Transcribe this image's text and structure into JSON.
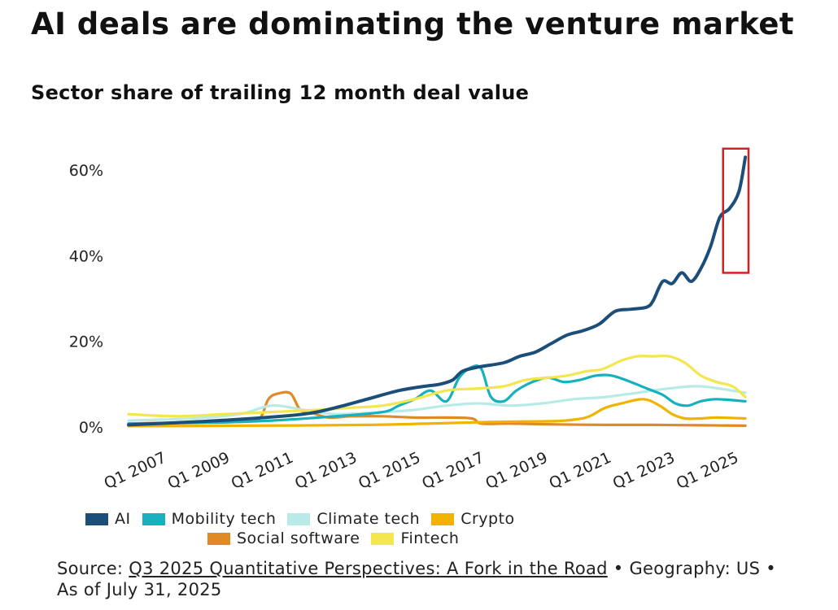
{
  "chart_data": {
    "type": "line",
    "title": "AI deals are dominating the venture market",
    "subtitle": "Sector share of trailing 12 month deal value",
    "x_ticks": [
      "Q1 2007",
      "Q1 2009",
      "Q1 2011",
      "Q1 2013",
      "Q1 2015",
      "Q1 2017",
      "Q1 2019",
      "Q1 2021",
      "Q1 2023",
      "Q1 2025"
    ],
    "y_ticks": [
      "0%",
      "20%",
      "40%",
      "60%"
    ],
    "ylim": [
      0,
      64
    ],
    "xlim": [
      2006.5,
      2026.0
    ],
    "grid": false,
    "legend_position": "bottom",
    "highlight": {
      "x_range": [
        2025.2,
        2026.0
      ],
      "y_range": [
        36,
        65
      ],
      "color": "#d42020"
    },
    "series": [
      {
        "name": "Social software",
        "color": "#e08a26",
        "x": [
          2006.5,
          2008.0,
          2009.5,
          2010.0,
          2010.6,
          2010.9,
          2011.2,
          2011.6,
          2011.9,
          2012.3,
          2012.8,
          2013.5,
          2014.5,
          2015.5,
          2016.5,
          2017.3,
          2017.6,
          2018.5,
          2020.0,
          2021.5,
          2023.0,
          2024.5,
          2025.9
        ],
        "y": [
          0.8,
          1.0,
          1.2,
          1.5,
          1.8,
          6.5,
          7.8,
          7.8,
          4.0,
          3.2,
          2.2,
          2.5,
          2.5,
          2.2,
          2.2,
          2.0,
          0.8,
          0.8,
          0.6,
          0.5,
          0.5,
          0.4,
          0.3
        ]
      },
      {
        "name": "Crypto",
        "color": "#f0b400",
        "x": [
          2006.5,
          2010.0,
          2014.0,
          2017.0,
          2018.0,
          2019.0,
          2020.0,
          2020.6,
          2021.0,
          2021.5,
          2022.0,
          2022.7,
          2023.2,
          2023.6,
          2024.0,
          2024.5,
          2025.0,
          2025.9
        ],
        "y": [
          0.2,
          0.3,
          0.5,
          1.0,
          1.2,
          1.3,
          1.4,
          1.8,
          2.5,
          4.5,
          5.5,
          6.5,
          5.0,
          3.0,
          2.0,
          2.0,
          2.2,
          2.0
        ]
      },
      {
        "name": "Climate tech",
        "color": "#b8ebe8",
        "x": [
          2006.5,
          2008.5,
          2010.0,
          2011.0,
          2012.0,
          2013.0,
          2014.5,
          2015.5,
          2016.5,
          2017.5,
          2018.5,
          2019.5,
          2020.5,
          2021.5,
          2022.5,
          2023.5,
          2024.5,
          2025.9
        ],
        "y": [
          1.5,
          2.0,
          3.0,
          5.0,
          4.0,
          3.0,
          3.5,
          4.0,
          5.0,
          5.5,
          5.0,
          5.5,
          6.5,
          7.0,
          8.0,
          9.0,
          9.5,
          8.0
        ]
      },
      {
        "name": "Mobility tech",
        "color": "#17b0bd",
        "x": [
          2006.5,
          2009.0,
          2011.0,
          2013.0,
          2014.5,
          2015.0,
          2015.5,
          2016.0,
          2016.5,
          2016.9,
          2017.3,
          2017.6,
          2017.9,
          2018.3,
          2018.7,
          2019.2,
          2019.7,
          2020.2,
          2020.7,
          2021.2,
          2021.7,
          2022.3,
          2022.8,
          2023.3,
          2023.7,
          2024.1,
          2024.5,
          2025.0,
          2025.9
        ],
        "y": [
          0.8,
          1.0,
          1.5,
          2.5,
          3.5,
          5.0,
          6.5,
          8.5,
          6.0,
          11.5,
          14.0,
          13.5,
          7.0,
          6.0,
          8.5,
          10.5,
          11.5,
          10.5,
          11.0,
          12.0,
          12.0,
          10.5,
          9.0,
          7.5,
          5.5,
          5.0,
          6.0,
          6.5,
          6.0
        ]
      },
      {
        "name": "Fintech",
        "color": "#f3e64e",
        "x": [
          2006.5,
          2008.0,
          2009.5,
          2011.0,
          2012.5,
          2013.5,
          2014.5,
          2015.5,
          2016.5,
          2017.5,
          2018.3,
          2019.0,
          2019.7,
          2020.3,
          2020.9,
          2021.4,
          2022.0,
          2022.5,
          2023.0,
          2023.5,
          2024.0,
          2024.5,
          2025.0,
          2025.5,
          2025.9
        ],
        "y": [
          3.0,
          2.5,
          3.0,
          3.5,
          4.0,
          4.5,
          5.0,
          6.5,
          8.5,
          9.0,
          9.5,
          11.0,
          11.5,
          12.0,
          13.0,
          13.5,
          15.5,
          16.5,
          16.5,
          16.5,
          15.0,
          12.0,
          10.5,
          9.5,
          7.0
        ]
      },
      {
        "name": "AI",
        "color": "#1b4e78",
        "x": [
          2006.5,
          2008.0,
          2010.0,
          2012.0,
          2013.0,
          2014.0,
          2015.0,
          2015.8,
          2016.3,
          2016.7,
          2017.0,
          2017.5,
          2018.3,
          2018.8,
          2019.3,
          2019.8,
          2020.3,
          2020.8,
          2021.3,
          2021.8,
          2022.3,
          2022.8,
          2023.0,
          2023.3,
          2023.6,
          2023.9,
          2024.2,
          2024.5,
          2024.8,
          2025.1,
          2025.4,
          2025.7,
          2025.9
        ],
        "y": [
          0.5,
          1.0,
          1.8,
          3.0,
          4.5,
          6.5,
          8.5,
          9.5,
          10.0,
          11.0,
          13.0,
          14.0,
          15.0,
          16.5,
          17.5,
          19.5,
          21.5,
          22.5,
          24.0,
          27.0,
          27.5,
          28.0,
          29.5,
          34.0,
          33.5,
          36.0,
          34.0,
          37.0,
          42.0,
          49.0,
          51.0,
          55.0,
          63.0
        ]
      }
    ]
  },
  "legend": {
    "items": [
      {
        "label": "AI",
        "color": "#1b4e78"
      },
      {
        "label": "Mobility tech",
        "color": "#17b0bd"
      },
      {
        "label": "Climate tech",
        "color": "#b8ebe8"
      },
      {
        "label": "Crypto",
        "color": "#f0b400"
      },
      {
        "label": "Social software",
        "color": "#e08a26"
      },
      {
        "label": "Fintech",
        "color": "#f3e64e"
      }
    ]
  },
  "source": {
    "prefix": "Source: ",
    "link_text": "Q3 2025 Quantitative Perspectives: A Fork in the Road",
    "suffix": " • Geography: US • As of July 31, 2025"
  }
}
